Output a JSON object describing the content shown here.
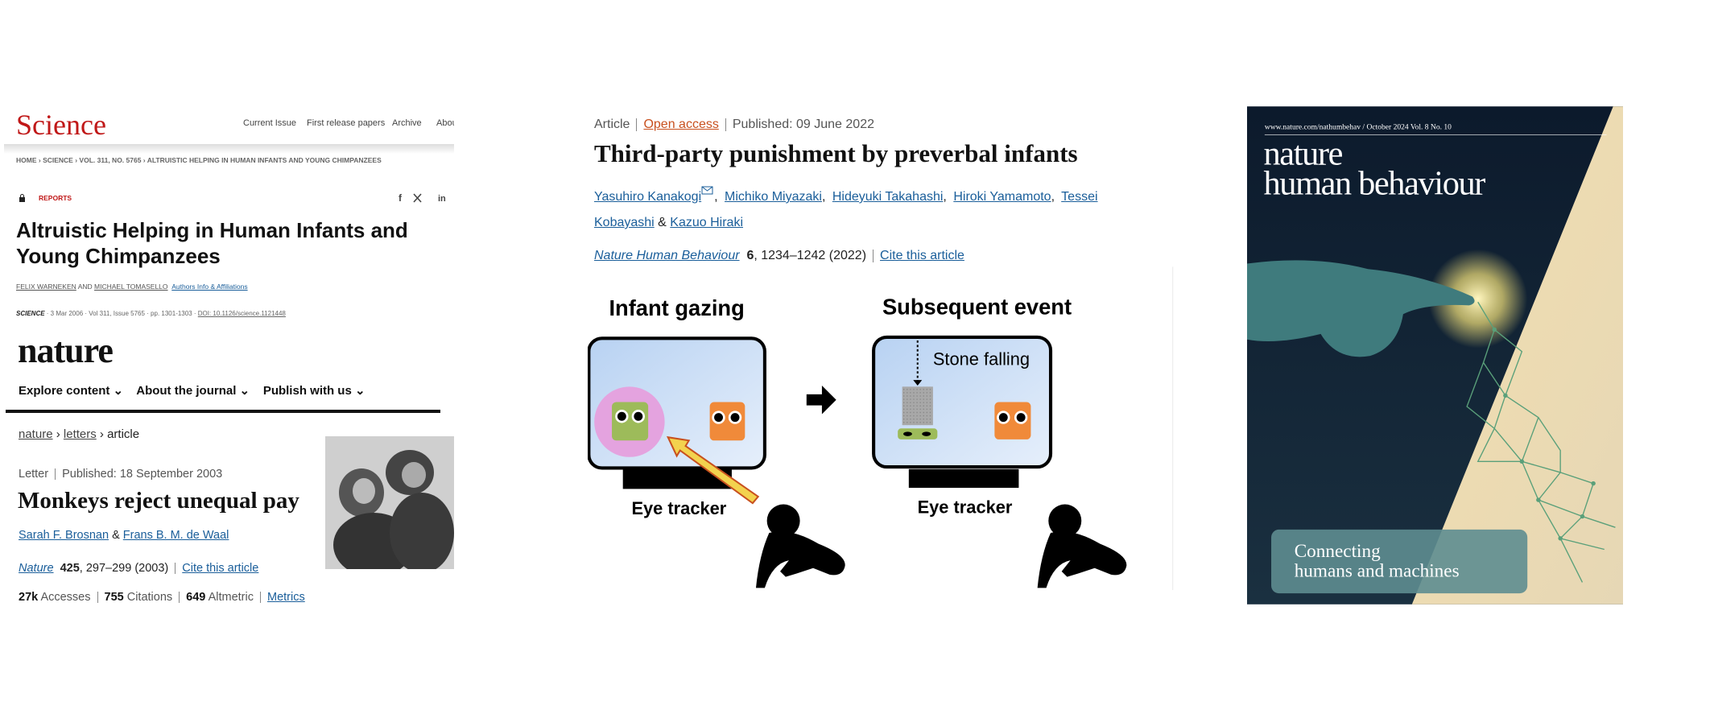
{
  "science_article": {
    "logo": "Science",
    "nav": [
      "Current Issue",
      "First release papers",
      "Archive",
      "Abou"
    ],
    "breadcrumb": [
      "HOME",
      "SCIENCE",
      "VOL. 311, NO. 5765",
      "ALTRUISTIC HELPING IN HUMAN INFANTS AND YOUNG CHIMPANZEES"
    ],
    "section": "REPORTS",
    "title": "Altruistic Helping in Human Infants and Young Chimpanzees",
    "authors": [
      "FELIX WARNEKEN",
      "MICHAEL TOMASELLO"
    ],
    "author_join": "AND",
    "affiliations": "Authors Info & Affiliations",
    "meta": [
      "SCIENCE",
      "3 Mar 2006",
      "Vol 311, Issue 5765",
      "pp. 1301-1303",
      "DOI: 10.1126/science.1121448"
    ]
  },
  "nature_letter": {
    "logo": "nature",
    "menu": [
      "Explore content",
      "About the journal",
      "Publish with us"
    ],
    "breadcrumb": [
      "nature",
      "letters",
      "article"
    ],
    "type": "Letter",
    "published": "Published: 18 September 2003",
    "title": "Monkeys reject unequal pay",
    "authors": [
      "Sarah F. Brosnan",
      "Frans B. M. de Waal"
    ],
    "author_join": "&",
    "journal": "Nature",
    "volume": "425",
    "pages": ", 297–299 (2003)",
    "cite": "Cite this article",
    "metrics": [
      {
        "value": "27k",
        "label": "Accesses"
      },
      {
        "value": 755,
        "label": "Citations"
      },
      {
        "value": 649,
        "label": "Altmetric"
      }
    ],
    "metrics_link": "Metrics"
  },
  "nature_article": {
    "type": "Article",
    "access": "Open access",
    "published": "Published: 09 June 2022",
    "title": "Third-party punishment by preverbal infants",
    "authors": [
      "Yasuhiro Kanakogi",
      "Michiko Miyazaki",
      "Hideyuki Takahashi",
      "Hiroki Yamamoto",
      "Tessei Kobayashi",
      "Kazuo Hiraki"
    ],
    "author_join": "&",
    "journal": "Nature Human Behaviour",
    "volume": "6",
    "pages": ", 1234–1242 (2022)",
    "cite": "Cite this article",
    "figure": {
      "left_title": "Infant gazing",
      "right_title": "Subsequent event",
      "event": "Stone falling",
      "device": "Eye tracker"
    }
  },
  "cover": {
    "url": "www.nature.com/nathumbehav / October 2024 Vol. 8 No. 10",
    "title_lines": [
      "nature",
      "human behaviour"
    ],
    "caption_lines": [
      "Connecting",
      "humans and machines"
    ]
  }
}
